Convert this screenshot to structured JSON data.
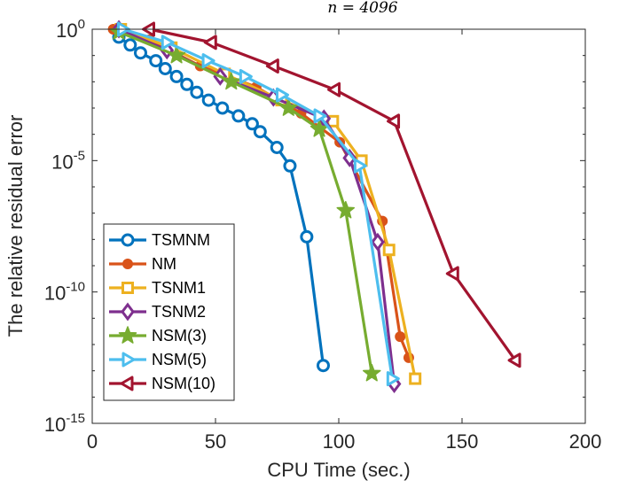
{
  "chart_data": {
    "type": "line",
    "title": "n = 4096",
    "xlabel": "CPU Time (sec.)",
    "ylabel": "The relative residual error",
    "xlim": [
      0,
      200
    ],
    "ylim_log10": [
      -15,
      0
    ],
    "yscale": "log",
    "x_ticks": [
      0,
      50,
      100,
      150,
      200
    ],
    "x_tick_labels": [
      "0",
      "50",
      "100",
      "150",
      "200"
    ],
    "y_ticks_log10": [
      0,
      -5,
      -10,
      -15
    ],
    "y_tick_bases": [
      "10",
      "10",
      "10",
      "10"
    ],
    "y_tick_exponents": [
      "0",
      "-5",
      "-10",
      "-15"
    ],
    "legend_position": "bottom-left",
    "series": [
      {
        "name": "TSMNM",
        "color": "#0072bd",
        "marker": "circle",
        "x": [
          10.8,
          15.4,
          19.6,
          25.8,
          29.6,
          34.2,
          38.4,
          42.4,
          47.2,
          52.8,
          59.3,
          64.9,
          68.1,
          74.9,
          80.2,
          87.0,
          93.7
        ],
        "y_log10": [
          -0.3,
          -0.6,
          -0.9,
          -1.2,
          -1.5,
          -1.8,
          -2.1,
          -2.4,
          -2.7,
          -3.0,
          -3.3,
          -3.6,
          -3.9,
          -4.5,
          -5.2,
          -7.9,
          -12.8
        ]
      },
      {
        "name": "NM",
        "color": "#d95319",
        "marker": "dot",
        "x": [
          8.5,
          23.2,
          43.8,
          66.5,
          84.7,
          100.4,
          117.7,
          124.9,
          128.4
        ],
        "y_log10": [
          -0.0,
          -0.4,
          -1.4,
          -2.2,
          -3.2,
          -4.3,
          -7.3,
          -11.7,
          -12.5
        ]
      },
      {
        "name": "TSNM1",
        "color": "#edb120",
        "marker": "square",
        "x": [
          11.6,
          32.1,
          53.7,
          76.8,
          97.6,
          109.2,
          120.4,
          131.0
        ],
        "y_log10": [
          -0.0,
          -0.7,
          -1.7,
          -2.7,
          -3.5,
          -5.0,
          -8.4,
          -13.3
        ]
      },
      {
        "name": "TSNM2",
        "color": "#7e2f8e",
        "marker": "diamond",
        "x": [
          10.8,
          30.3,
          51.9,
          73.5,
          94.0,
          104.4,
          115.8,
          122.5
        ],
        "y_log10": [
          -0.0,
          -0.8,
          -1.8,
          -2.6,
          -3.4,
          -4.9,
          -8.1,
          -13.5
        ]
      },
      {
        "name": "NSM(3)",
        "color": "#77ac30",
        "marker": "star",
        "x": [
          10.8,
          34.2,
          56.4,
          79.6,
          92.1,
          102.8,
          113.4
        ],
        "y_log10": [
          -0.1,
          -1.0,
          -2.0,
          -3.0,
          -3.8,
          -6.9,
          -13.1
        ]
      },
      {
        "name": "NSM(5)",
        "color": "#4dbeee",
        "marker": "triangle-right",
        "x": [
          12.4,
          30.3,
          46.8,
          62.0,
          76.8,
          92.1,
          108.4,
          121.7
        ],
        "y_log10": [
          -0.0,
          -0.5,
          -1.2,
          -1.8,
          -2.5,
          -3.3,
          -5.2,
          -13.3
        ]
      },
      {
        "name": "NSM(10)",
        "color": "#a2142f",
        "marker": "triangle-left",
        "x": [
          23.2,
          48.3,
          73.5,
          98.4,
          122.5,
          146.5,
          171.6
        ],
        "y_log10": [
          -0.0,
          -0.5,
          -1.4,
          -2.3,
          -3.5,
          -9.3,
          -12.6
        ]
      }
    ]
  }
}
